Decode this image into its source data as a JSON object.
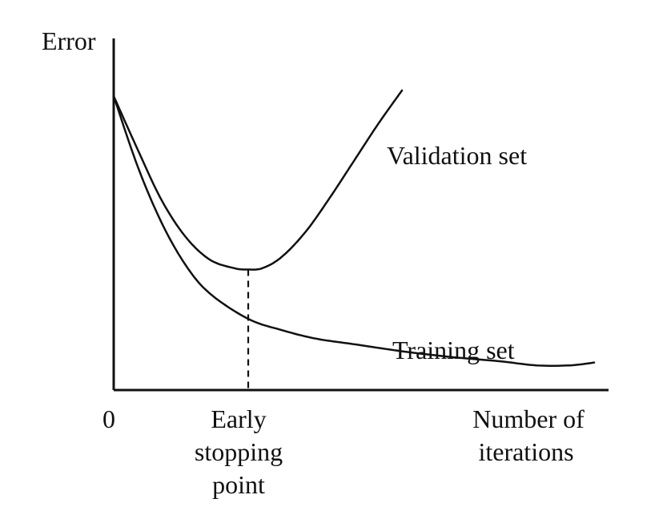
{
  "chart_data": {
    "type": "line",
    "ylabel": "Error",
    "x_origin_label": "0",
    "xlabel_lines": [
      "Number of",
      "iterations"
    ],
    "stop_label_lines": [
      "Early",
      "stopping",
      "point"
    ],
    "x_range": [
      0,
      100
    ],
    "y_range": [
      0,
      100
    ],
    "early_stopping_x": 28,
    "series": [
      {
        "name": "Validation set",
        "color": "#111111",
        "x": [
          0,
          5,
          10,
          15,
          20,
          25,
          28,
          31,
          35,
          40,
          45,
          50,
          55,
          60
        ],
        "y": [
          100,
          81,
          63,
          50,
          42,
          39,
          38.5,
          39,
          43,
          52,
          64,
          77,
          90,
          102
        ]
      },
      {
        "name": "Training set",
        "color": "#111111",
        "x": [
          0,
          5,
          10,
          15,
          20,
          28,
          35,
          42,
          50,
          60,
          70,
          80,
          88,
          95,
          100
        ],
        "y": [
          100,
          75,
          55,
          40,
          30,
          21,
          17,
          14,
          12,
          9.5,
          7.5,
          6,
          4.5,
          4.5,
          5.5
        ]
      }
    ]
  }
}
